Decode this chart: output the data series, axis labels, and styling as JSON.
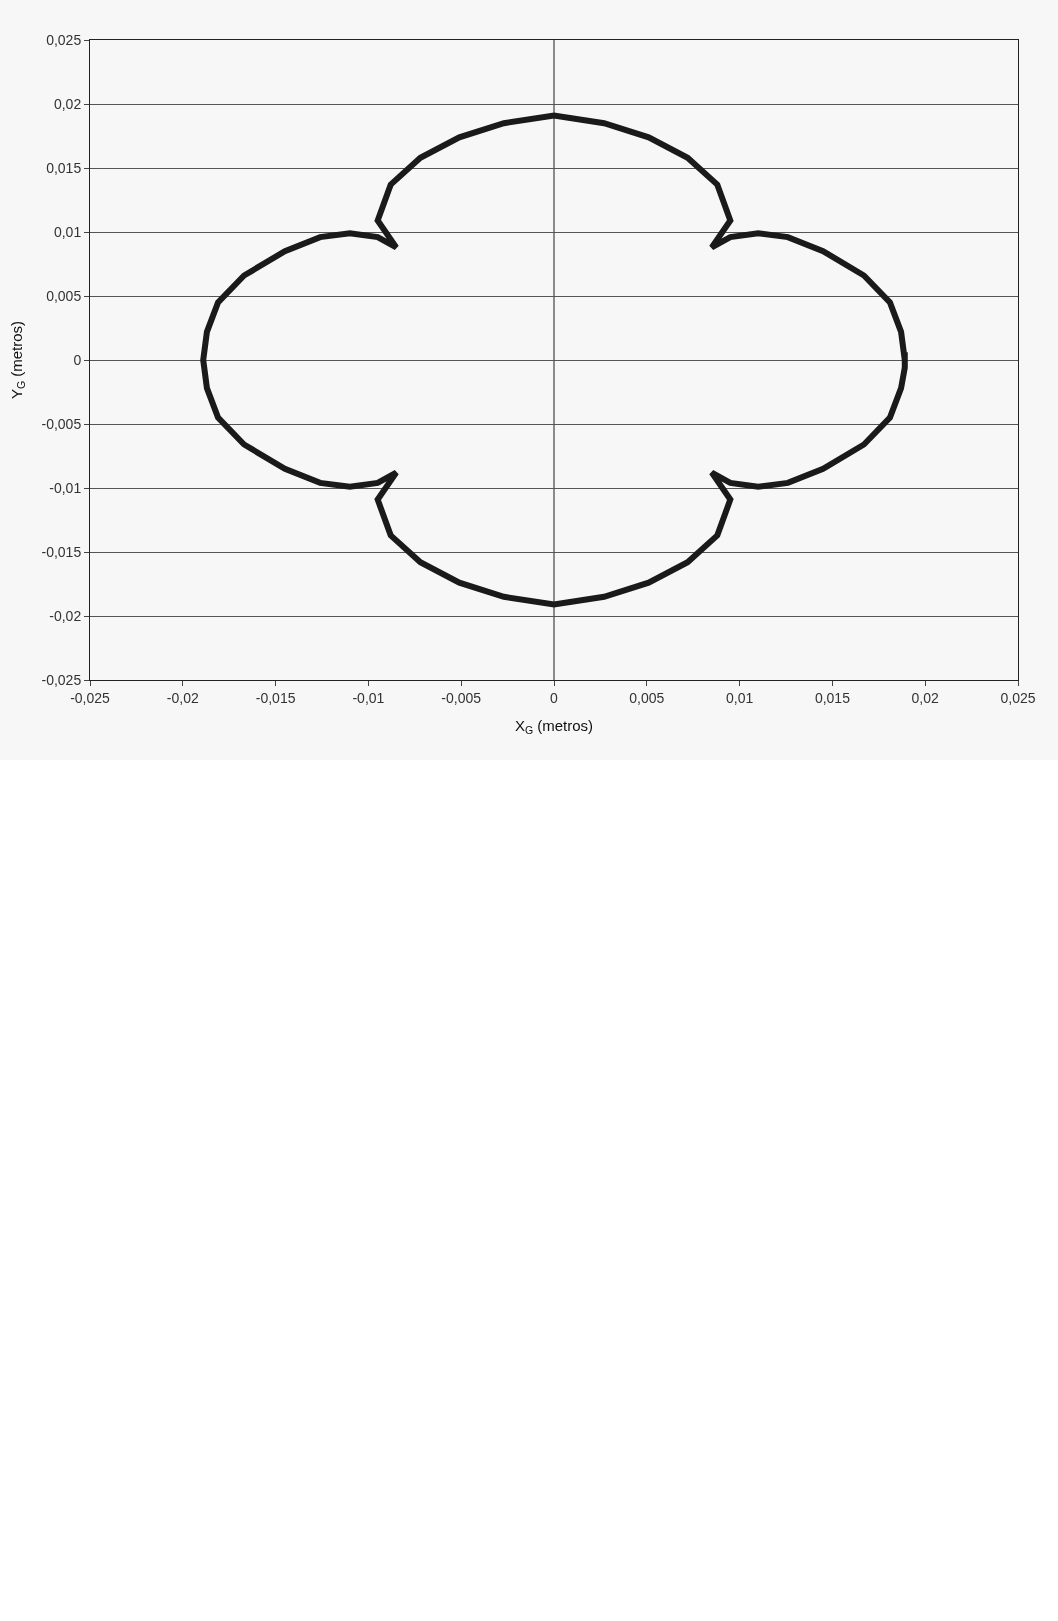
{
  "chart_data": {
    "type": "line",
    "xlabel": "X$_{G}$ (metros)",
    "ylabel": "Y$_{G}$ (metros)",
    "series": [
      {
        "color": "#1a1a1a",
        "x": [
          0.0189,
          0.0187,
          0.0181,
          0.0167,
          0.0145,
          0.0126,
          0.011,
          0.0095,
          0.0085,
          0.0095,
          0.0088,
          0.0072,
          0.0051,
          0.0027,
          0,
          -0.0027,
          -0.0051,
          -0.0072,
          -0.0088,
          -0.0095,
          -0.0085,
          -0.0095,
          -0.011,
          -0.0126,
          -0.0145,
          -0.0167,
          -0.0181,
          -0.0187,
          -0.0189,
          -0.0187,
          -0.0181,
          -0.0167,
          -0.0145,
          -0.0126,
          -0.011,
          -0.0095,
          -0.0085,
          -0.0095,
          -0.0088,
          -0.0072,
          -0.0051,
          -0.0027,
          0,
          0.0027,
          0.0051,
          0.0072,
          0.0088,
          0.0095,
          0.0085,
          0.0095,
          0.011,
          0.0126,
          0.0145,
          0.0167,
          0.0181,
          0.0187,
          0.0189,
          0.0189
        ],
        "values": [
          0,
          0.0022,
          0.0045,
          0.0066,
          0.0085,
          0.0096,
          0.0099,
          0.0096,
          0.0088,
          0.0109,
          0.0137,
          0.0158,
          0.0174,
          0.0185,
          0.0191,
          0.0185,
          0.0174,
          0.0158,
          0.0137,
          0.0109,
          0.0088,
          0.0096,
          0.0099,
          0.0096,
          0.0085,
          0.0066,
          0.0045,
          0.0022,
          0,
          -0.0022,
          -0.0045,
          -0.0066,
          -0.0085,
          -0.0096,
          -0.0099,
          -0.0096,
          -0.0088,
          -0.0109,
          -0.0137,
          -0.0158,
          -0.0174,
          -0.0185,
          -0.0191,
          -0.0185,
          -0.0174,
          -0.0158,
          -0.0137,
          -0.0109,
          -0.0088,
          -0.0096,
          -0.0099,
          -0.0096,
          -0.0085,
          -0.0066,
          -0.0045,
          -0.0022,
          -0.0006,
          0.0006
        ]
      }
    ],
    "xlim": [
      -0.025,
      0.025
    ],
    "ylim": [
      -0.025,
      0.025
    ],
    "xticks": [
      {
        "value": -0.025,
        "label": "-0,025"
      },
      {
        "value": -0.02,
        "label": "-0,02"
      },
      {
        "value": -0.015,
        "label": "-0,015"
      },
      {
        "value": -0.01,
        "label": "-0,01"
      },
      {
        "value": -0.005,
        "label": "-0,005"
      },
      0,
      {
        "value": 0.005,
        "label": "0,005"
      },
      {
        "value": 0.01,
        "label": "0,01"
      },
      {
        "value": 0.015,
        "label": "0,015"
      },
      {
        "value": 0.02,
        "label": "0,02"
      },
      {
        "value": 0.025,
        "label": "0,025"
      }
    ],
    "yticks": [
      {
        "value": -0.025,
        "label": "-0,025"
      },
      {
        "value": -0.02,
        "label": "-0,02"
      },
      {
        "value": -0.015,
        "label": "-0,015"
      },
      {
        "value": -0.01,
        "label": "-0,01"
      },
      {
        "value": -0.005,
        "label": "-0,005"
      },
      0,
      {
        "value": 0.005,
        "label": "0,005"
      },
      {
        "value": 0.01,
        "label": "0,01"
      },
      {
        "value": 0.015,
        "label": "0,015"
      },
      {
        "value": 0.02,
        "label": "0,02"
      },
      {
        "value": 0.025,
        "label": "0,025"
      }
    ],
    "ref_lines": [
      {
        "axis": "x",
        "value": 0,
        "color": "#666666"
      }
    ],
    "grid": "y",
    "marker": "none",
    "line_style": "solid"
  }
}
